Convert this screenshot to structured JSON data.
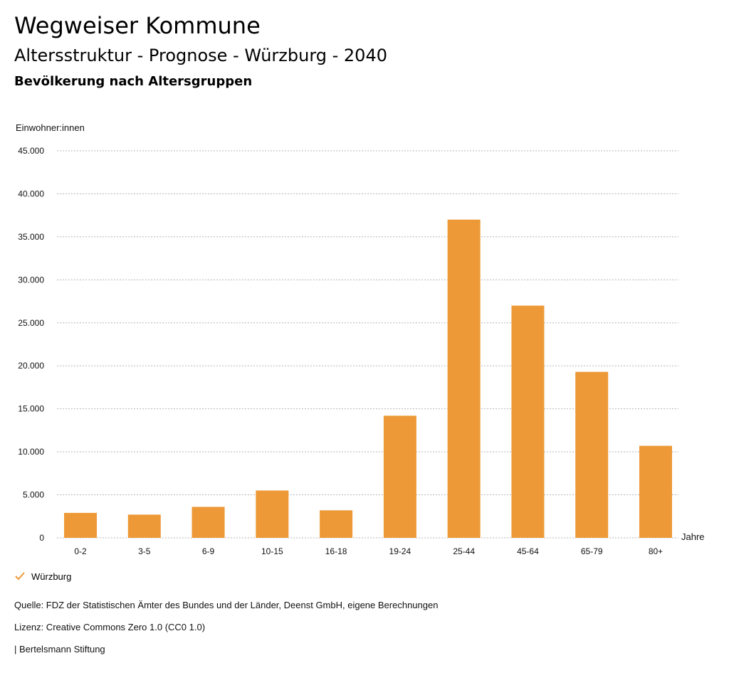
{
  "header": {
    "title": "Wegweiser Kommune",
    "subtitle": "Altersstruktur - Prognose - Würzburg - 2040",
    "caption": "Bevölkerung nach Altersgruppen"
  },
  "chart_data": {
    "type": "bar",
    "ylabel": "Einwohner:innen",
    "xlabel": "Jahre",
    "ylim": [
      0,
      45000
    ],
    "yticks": [
      0,
      5000,
      10000,
      15000,
      20000,
      25000,
      30000,
      35000,
      40000,
      45000
    ],
    "ytick_labels": [
      "0",
      "5.000",
      "10.000",
      "15.000",
      "20.000",
      "25.000",
      "30.000",
      "35.000",
      "40.000",
      "45.000"
    ],
    "categories": [
      "0-2",
      "3-5",
      "6-9",
      "10-15",
      "16-18",
      "19-24",
      "25-44",
      "45-64",
      "65-79",
      "80+"
    ],
    "series": [
      {
        "name": "Würzburg",
        "color": "#ed9937",
        "values": [
          2900,
          2700,
          3600,
          5500,
          3200,
          14200,
          37000,
          27000,
          19300,
          10700
        ]
      }
    ],
    "grid": true
  },
  "legend": {
    "label": "Würzburg",
    "icon": "check-icon",
    "color": "#ed9937"
  },
  "footer": {
    "source": "Quelle: FDZ der Statistischen Ämter des Bundes und der Länder, Deenst GmbH, eigene Berechnungen",
    "license": "Lizenz: Creative Commons Zero 1.0 (CC0 1.0)",
    "brand": "| Bertelsmann Stiftung"
  }
}
